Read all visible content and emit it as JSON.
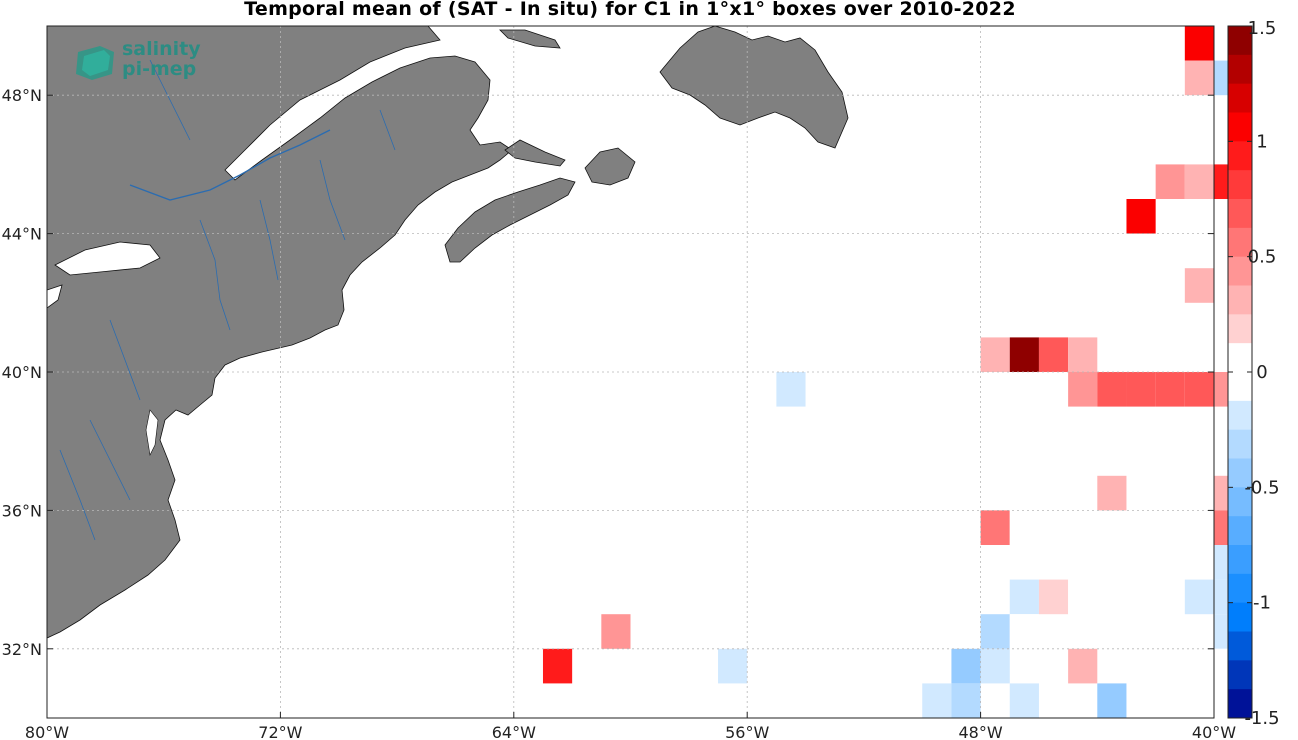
{
  "title": "Temporal mean of (SAT - In situ) for C1 in 1°x1° boxes over 2010-2022",
  "logo": {
    "line1": "salinity",
    "line2": "pi-mep"
  },
  "map": {
    "lon_range": [
      -80,
      -40
    ],
    "lat_range": [
      30,
      50
    ],
    "lon_ticks": [
      -80,
      -72,
      -64,
      -56,
      -48,
      -40
    ],
    "lat_ticks": [
      32,
      36,
      40,
      44,
      48
    ],
    "lon_tick_labels": [
      "80°W",
      "72°W",
      "64°W",
      "56°W",
      "48°W",
      "40°W"
    ],
    "lat_tick_labels": [
      "32°N",
      "36°N",
      "40°N",
      "44°N",
      "48°N"
    ],
    "land_color": "#808080",
    "river_color": "#2b6cb0",
    "grid": true
  },
  "colorbar": {
    "range": [
      -1.5,
      1.5
    ],
    "n_steps": 24,
    "tick_values": [
      1.5,
      1,
      0.5,
      0,
      -0.5,
      -1,
      -1.5
    ],
    "tick_labels": [
      "1.5",
      "1",
      "0.5",
      "0",
      "-0.5",
      "-1",
      "-1.5"
    ]
  },
  "chart_data": {
    "type": "heatmap",
    "title": "Temporal mean of (SAT - In situ) for C1 in 1°x1° boxes over 2010-2022",
    "cell_size_deg": 1,
    "value_range": [
      -1.5,
      1.5
    ],
    "cells": [
      {
        "lon": -41,
        "lat": 49,
        "value": 1.0
      },
      {
        "lon": -41,
        "lat": 48,
        "value": 0.35
      },
      {
        "lon": -40,
        "lat": 48,
        "value": -0.3
      },
      {
        "lon": -42,
        "lat": 45,
        "value": 0.45
      },
      {
        "lon": -41,
        "lat": 45,
        "value": 0.3
      },
      {
        "lon": -40,
        "lat": 45,
        "value": 0.95
      },
      {
        "lon": -43,
        "lat": 44,
        "value": 1.0
      },
      {
        "lon": -43,
        "lat": 43,
        "value": 0.12
      },
      {
        "lon": -42,
        "lat": 42,
        "value": 0.12
      },
      {
        "lon": -41,
        "lat": 42,
        "value": 0.25
      },
      {
        "lon": -49,
        "lat": 40,
        "value": 0.12
      },
      {
        "lon": -48,
        "lat": 40,
        "value": 0.25
      },
      {
        "lon": -47,
        "lat": 40,
        "value": 1.5
      },
      {
        "lon": -46,
        "lat": 40,
        "value": 0.7
      },
      {
        "lon": -45,
        "lat": 40,
        "value": 0.25
      },
      {
        "lon": -45,
        "lat": 39,
        "value": 0.45
      },
      {
        "lon": -44,
        "lat": 39,
        "value": 0.7
      },
      {
        "lon": -43,
        "lat": 39,
        "value": 0.7
      },
      {
        "lon": -42,
        "lat": 39,
        "value": 0.7
      },
      {
        "lon": -41,
        "lat": 39,
        "value": 0.7
      },
      {
        "lon": -40,
        "lat": 39,
        "value": 0.45
      },
      {
        "lon": -55,
        "lat": 39,
        "value": -0.2
      },
      {
        "lon": -56,
        "lat": 37,
        "value": 0.12
      },
      {
        "lon": -45,
        "lat": 36,
        "value": 0.12
      },
      {
        "lon": -44,
        "lat": 36,
        "value": 0.3
      },
      {
        "lon": -43,
        "lat": 36,
        "value": 0.08
      },
      {
        "lon": -40,
        "lat": 36,
        "value": 0.3
      },
      {
        "lon": -57,
        "lat": 35,
        "value": -0.08
      },
      {
        "lon": -50,
        "lat": 35,
        "value": 0.12
      },
      {
        "lon": -48,
        "lat": 35,
        "value": 0.5
      },
      {
        "lon": -47,
        "lat": 35,
        "value": 0.12
      },
      {
        "lon": -45,
        "lat": 35,
        "value": 0.12
      },
      {
        "lon": -40,
        "lat": 35,
        "value": 0.5
      },
      {
        "lon": -57,
        "lat": 34,
        "value": -0.08
      },
      {
        "lon": -53,
        "lat": 34,
        "value": -0.08
      },
      {
        "lon": -50,
        "lat": 34,
        "value": 0.12
      },
      {
        "lon": -40,
        "lat": 34,
        "value": -0.2
      },
      {
        "lon": -47,
        "lat": 33,
        "value": -0.25
      },
      {
        "lon": -46,
        "lat": 33,
        "value": 0.18
      },
      {
        "lon": -45,
        "lat": 33,
        "value": -0.12
      },
      {
        "lon": -41,
        "lat": 33,
        "value": -0.15
      },
      {
        "lon": -40,
        "lat": 33,
        "value": -0.2
      },
      {
        "lon": -61,
        "lat": 32,
        "value": 0.45
      },
      {
        "lon": -57,
        "lat": 32,
        "value": -0.12
      },
      {
        "lon": -48,
        "lat": 32,
        "value": -0.35
      },
      {
        "lon": -47,
        "lat": 32,
        "value": -0.12
      },
      {
        "lon": -44,
        "lat": 32,
        "value": -0.12
      },
      {
        "lon": -40,
        "lat": 32,
        "value": -0.2
      },
      {
        "lon": -63,
        "lat": 31,
        "value": 0.95
      },
      {
        "lon": -57,
        "lat": 31,
        "value": -0.2
      },
      {
        "lon": -49,
        "lat": 31,
        "value": -0.45
      },
      {
        "lon": -48,
        "lat": 31,
        "value": -0.2
      },
      {
        "lon": -45,
        "lat": 31,
        "value": 0.3
      },
      {
        "lon": -40,
        "lat": 31,
        "value": -0.08
      },
      {
        "lon": -67,
        "lat": 30,
        "value": 0.12
      },
      {
        "lon": -66,
        "lat": 30,
        "value": 0.12
      },
      {
        "lon": -50,
        "lat": 30,
        "value": -0.2
      },
      {
        "lon": -49,
        "lat": 30,
        "value": -0.3
      },
      {
        "lon": -47,
        "lat": 30,
        "value": -0.2
      },
      {
        "lon": -44,
        "lat": 30,
        "value": -0.45
      },
      {
        "lon": -43,
        "lat": 30,
        "value": -0.1
      },
      {
        "lon": -42,
        "lat": 30,
        "value": -0.1
      },
      {
        "lon": -41,
        "lat": 30,
        "value": -0.1
      }
    ]
  }
}
